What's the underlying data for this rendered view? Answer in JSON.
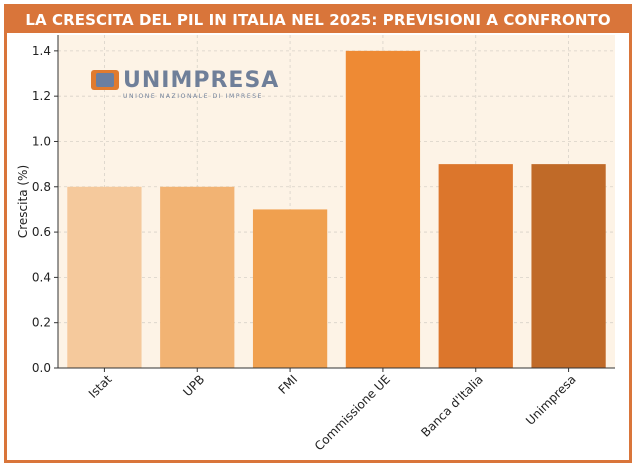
{
  "header": {
    "title": "LA CRESCITA DEL PIL IN ITALIA NEL 2025: PREVISIONI A CONFRONTO"
  },
  "logo": {
    "name": "UNIMPRESA",
    "tagline": "UNIONE NAZIONALE DI IMPRESE"
  },
  "colors": {
    "accent": "#d9753a",
    "plot_background": "#fdf3e6",
    "bars": [
      "#f5c99c",
      "#f2b373",
      "#f0a04f",
      "#ee8a34",
      "#dc762c",
      "#c06a28"
    ]
  },
  "chart_data": {
    "type": "bar",
    "title": "LA CRESCITA DEL PIL IN ITALIA NEL 2025: PREVISIONI A CONFRONTO",
    "categories": [
      "Istat",
      "UPB",
      "FMI",
      "Commissione UE",
      "Banca d'Italia",
      "Unimpresa"
    ],
    "values": [
      0.8,
      0.8,
      0.7,
      1.4,
      0.9,
      0.9
    ],
    "xlabel": "",
    "ylabel": "Crescita (%)",
    "ylim": [
      0,
      1.47
    ],
    "yticks": [
      "0.0",
      "0.2",
      "0.4",
      "0.6",
      "0.8",
      "1.0",
      "1.2",
      "1.4"
    ],
    "grid": true,
    "legend": "none"
  }
}
